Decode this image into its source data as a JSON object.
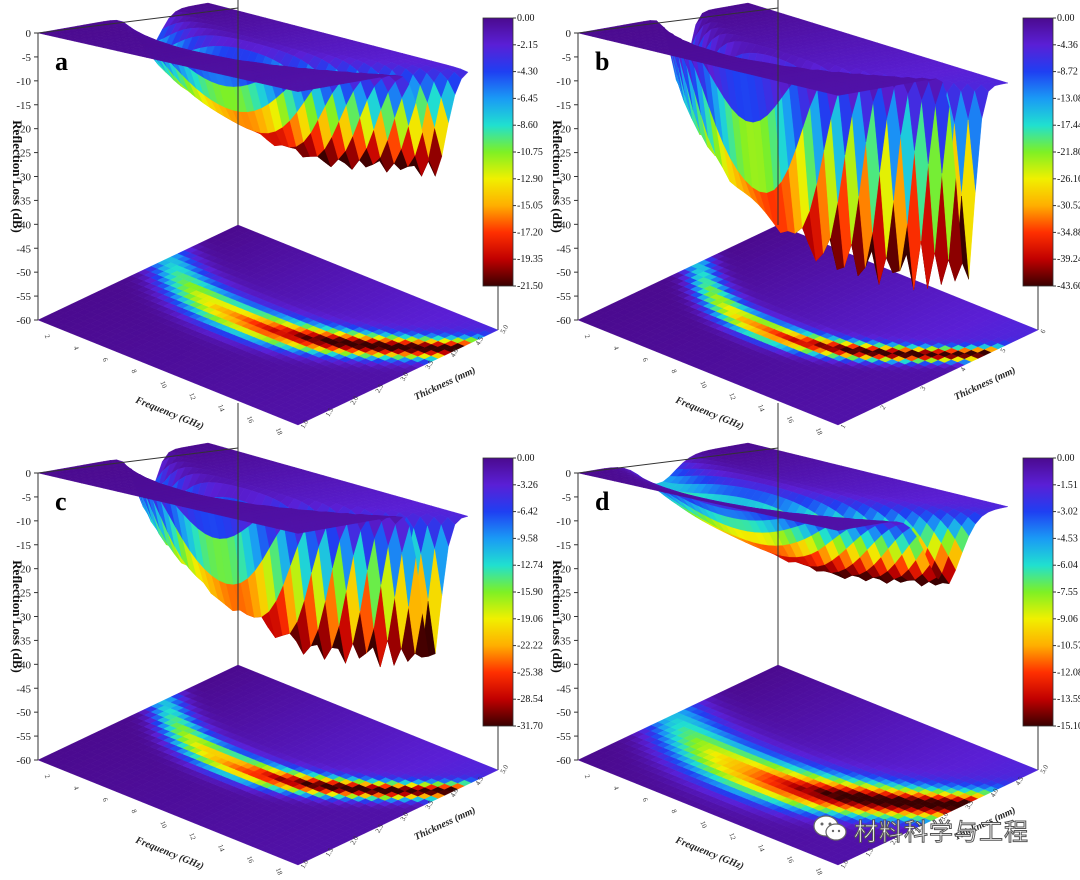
{
  "chart_data": [
    {
      "type": "surface3d",
      "panel": "a",
      "xlabel": "Frequency (GHz)",
      "ylabel": "Reflection Loss (dB)",
      "zlabel": "Thickness (mm)",
      "zlim": [
        -60,
        0
      ],
      "z_ticks": [
        "0",
        "-5",
        "-10",
        "-15",
        "-20",
        "-25",
        "-30",
        "-35",
        "-40",
        "-45",
        "-50",
        "-55",
        "-60"
      ],
      "freq_ticks": [
        "2",
        "4",
        "6",
        "8",
        "10",
        "12",
        "14",
        "16",
        "18"
      ],
      "thick_ticks": [
        "1.0",
        "1.5",
        "2.0",
        "2.5",
        "3.0",
        "3.5",
        "4.0",
        "4.5",
        "5.0"
      ],
      "colorbar": [
        "0.00",
        "-2.15",
        "-4.30",
        "-6.45",
        "-8.60",
        "-10.75",
        "-12.90",
        "-15.05",
        "-17.20",
        "-19.35",
        "-21.50"
      ],
      "min_rl": -21.5
    },
    {
      "type": "surface3d",
      "panel": "b",
      "xlabel": "Frequency (GHz)",
      "ylabel": "Reflection Loss (dB)",
      "zlabel": "Thickness (mm)",
      "zlim": [
        -60,
        0
      ],
      "z_ticks": [
        "0",
        "-5",
        "-10",
        "-15",
        "-20",
        "-25",
        "-30",
        "-35",
        "-40",
        "-45",
        "-50",
        "-55",
        "-60"
      ],
      "freq_ticks": [
        "2",
        "4",
        "6",
        "8",
        "10",
        "12",
        "14",
        "16",
        "18"
      ],
      "thick_ticks": [
        "1",
        "2",
        "3",
        "4",
        "5",
        "6"
      ],
      "colorbar": [
        "0.00",
        "-4.36",
        "-8.72",
        "-13.08",
        "-17.44",
        "-21.80",
        "-26.16",
        "-30.52",
        "-34.88",
        "-39.24",
        "-43.60"
      ],
      "min_rl": -43.6
    },
    {
      "type": "surface3d",
      "panel": "c",
      "xlabel": "Frequency (GHz)",
      "ylabel": "Reflection Loss (dB)",
      "zlabel": "Thickness (mm)",
      "zlim": [
        -60,
        0
      ],
      "z_ticks": [
        "0",
        "-5",
        "-10",
        "-15",
        "-20",
        "-25",
        "-30",
        "-35",
        "-40",
        "-45",
        "-50",
        "-55",
        "-60"
      ],
      "freq_ticks": [
        "2",
        "4",
        "6",
        "8",
        "10",
        "12",
        "14",
        "16",
        "18"
      ],
      "thick_ticks": [
        "1.0",
        "1.5",
        "2.0",
        "2.5",
        "3.0",
        "3.5",
        "4.0",
        "4.5",
        "5.0"
      ],
      "colorbar": [
        "0.00",
        "-3.26",
        "-6.42",
        "-9.58",
        "-12.74",
        "-15.90",
        "-19.06",
        "-22.22",
        "-25.38",
        "-28.54",
        "-31.70"
      ],
      "min_rl": -31.7
    },
    {
      "type": "surface3d",
      "panel": "d",
      "xlabel": "Frequency (GHz)",
      "ylabel": "Reflection Loss (dB)",
      "zlabel": "Thickness (mm)",
      "zlim": [
        -60,
        0
      ],
      "z_ticks": [
        "0",
        "-5",
        "-10",
        "-15",
        "-20",
        "-25",
        "-30",
        "-35",
        "-40",
        "-45",
        "-50",
        "-55",
        "-60"
      ],
      "freq_ticks": [
        "2",
        "4",
        "6",
        "8",
        "10",
        "12",
        "14",
        "16",
        "18"
      ],
      "thick_ticks": [
        "1.0",
        "1.5",
        "2.0",
        "2.5",
        "3.0",
        "3.5",
        "4.0",
        "4.5",
        "5.0"
      ],
      "colorbar": [
        "0.00",
        "-1.51",
        "-3.02",
        "-4.53",
        "-6.04",
        "-7.55",
        "-9.06",
        "-10.57",
        "-12.08",
        "-13.59",
        "-15.10"
      ],
      "min_rl": -15.1
    }
  ],
  "watermark": {
    "text": "材料科学与工程",
    "icon": "wechat-icon"
  }
}
